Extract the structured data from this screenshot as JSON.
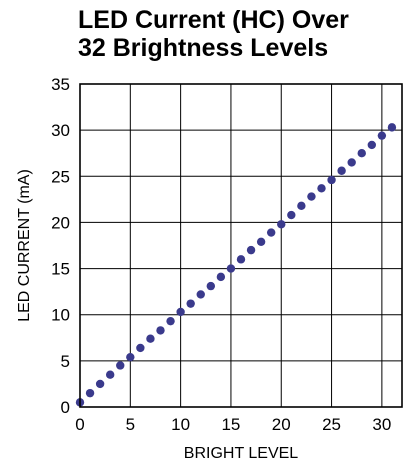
{
  "chart_data": {
    "type": "scatter",
    "title_lines": [
      "LED Current (HC) Over",
      "32 Brightness Levels"
    ],
    "xlabel": "BRIGHT LEVEL",
    "ylabel": "LED CURRENT (mA)",
    "xlim": [
      0,
      32
    ],
    "ylim": [
      0,
      35
    ],
    "xticks": [
      0,
      5,
      10,
      15,
      20,
      25,
      30
    ],
    "yticks": [
      0,
      5,
      10,
      15,
      20,
      25,
      30,
      35
    ],
    "grid": true,
    "marker_color": "#3a3a8c",
    "series": [
      {
        "x": [
          0,
          1,
          2,
          3,
          4,
          5,
          6,
          7,
          8,
          9,
          10,
          11,
          12,
          13,
          14,
          15,
          16,
          17,
          18,
          19,
          20,
          21,
          22,
          23,
          24,
          25,
          26,
          27,
          28,
          29,
          30,
          31
        ],
        "y": [
          0.5,
          1.5,
          2.5,
          3.5,
          4.5,
          5.4,
          6.4,
          7.4,
          8.3,
          9.3,
          10.3,
          11.2,
          12.2,
          13.1,
          14.1,
          15.0,
          16.0,
          17.0,
          17.9,
          18.9,
          19.8,
          20.8,
          21.8,
          22.8,
          23.7,
          24.6,
          25.6,
          26.5,
          27.5,
          28.4,
          29.4,
          30.3
        ]
      }
    ]
  }
}
